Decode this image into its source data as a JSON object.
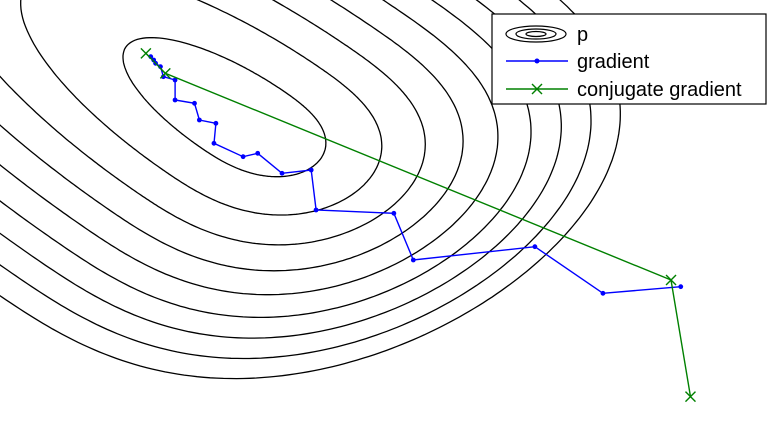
{
  "colors": {
    "contour": "#000000",
    "gradient": "#0000ff",
    "conjugate_gradient": "#008000",
    "background": "#ffffff"
  },
  "chart_data": {
    "type": "line",
    "grid": false,
    "legend_placement": "top-right",
    "series": [
      {
        "name": "p",
        "kind": "contour",
        "color": "#000000",
        "center": [
          -0.5,
          1.5
        ],
        "levels": [
          0.35,
          1.2,
          2.3,
          3.6,
          5.1,
          6.8,
          8.6,
          10.6,
          12.8
        ]
      },
      {
        "name": "gradient",
        "kind": "line",
        "marker": "dot",
        "color": "#0000ff",
        "x": [
          4.0,
          3.2,
          2.5,
          1.25,
          1.05,
          0.25,
          0.2,
          -0.1,
          -0.35,
          -0.5,
          -0.8,
          -0.78,
          -0.95,
          -1.0,
          -1.2,
          -1.2,
          -1.32,
          -1.35,
          -1.4,
          -1.42,
          -1.45
        ],
        "y": [
          -1.0,
          -1.1,
          -0.4,
          -0.6,
          0.1,
          0.15,
          0.75,
          0.7,
          1.0,
          0.95,
          1.15,
          1.45,
          1.5,
          1.75,
          1.8,
          2.1,
          2.15,
          2.3,
          2.35,
          2.4,
          2.45
        ]
      },
      {
        "name": "conjugate gradient",
        "kind": "line",
        "marker": "x",
        "color": "#008000",
        "x": [
          4.1,
          3.9,
          -1.3,
          -1.5
        ],
        "y": [
          -2.65,
          -0.9,
          2.2,
          2.5
        ]
      }
    ]
  }
}
